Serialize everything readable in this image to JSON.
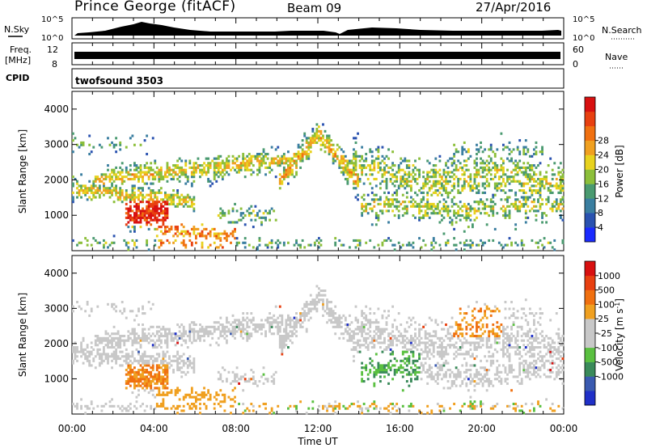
{
  "header": {
    "station": "Prince George (fitACF)",
    "beam": "Beam 09",
    "date": "27/Apr/2016"
  },
  "strips": {
    "nsky_label": "N.Sky",
    "nsky_ticks": [
      "10^5",
      "10^0"
    ],
    "nsearch_label": "N.Search",
    "nsearch_ticks": [
      "10^5",
      "10^0"
    ],
    "freq_label": "Freq.",
    "freq_unit": "[MHz]",
    "freq_ticks": [
      "12",
      "8"
    ],
    "nave_label": "Nave",
    "nave_ticks": [
      "60",
      "0"
    ],
    "cpid_label": "CPID",
    "cpid_value": "twofsound 3503"
  },
  "chart_data": [
    {
      "type": "heatmap",
      "title": "",
      "ylabel": "Slant Range [km]",
      "ylim": [
        0,
        4500
      ],
      "yticks": [
        "1000",
        "2000",
        "3000",
        "4000"
      ],
      "xlim": [
        "00:00",
        "24:00"
      ],
      "colorbar": {
        "label": "Power [dB]",
        "ticks": [
          "4",
          "8",
          "12",
          "16",
          "20",
          "24",
          "28"
        ],
        "colors": [
          "#1a2aff",
          "#2a52b0",
          "#3a7ea0",
          "#4a9a70",
          "#8cbf3a",
          "#e8d21e",
          "#f0a020",
          "#f07010",
          "#e84010",
          "#d81010"
        ]
      }
    },
    {
      "type": "heatmap",
      "title": "",
      "ylabel": "Slant Range [km]",
      "ylim": [
        0,
        4500
      ],
      "yticks": [
        "1000",
        "2000",
        "3000",
        "4000"
      ],
      "xlim": [
        "00:00",
        "24:00"
      ],
      "xlabel": "Time UT",
      "xticks": [
        "00:00",
        "04:00",
        "08:00",
        "12:00",
        "16:00",
        "20:00",
        "00:00"
      ],
      "colorbar": {
        "label": "Velocity [m s",
        "label_sup": "-1",
        "label_end": "]",
        "ticks": [
          "1000",
          "500",
          "100",
          "25",
          "-25",
          "-100",
          "-500",
          "-1000"
        ],
        "colors": [
          "#2030c8",
          "#3a5ab0",
          "#3a8a5a",
          "#5ac040",
          "#c8c8c8",
          "#c8c8c8",
          "#f0a020",
          "#f07010",
          "#e84010",
          "#d81010"
        ]
      }
    }
  ]
}
